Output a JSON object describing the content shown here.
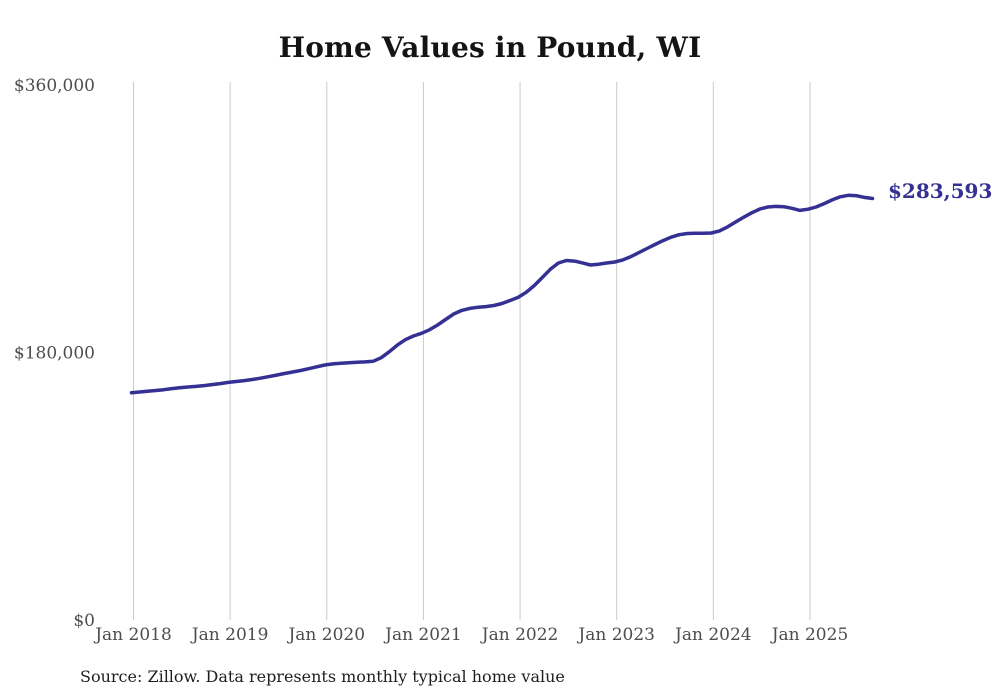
{
  "header": {
    "title": "Home Values in Pound, WI"
  },
  "chart_data": {
    "type": "line",
    "title": "Home Values in Pound, WI",
    "frequency": "monthly",
    "x_range": {
      "start": "Jan 2018",
      "end": "Sep 2025"
    },
    "ylim": [
      0,
      360000
    ],
    "grid": "vertical-only",
    "legend": "none",
    "end_label": "$283,593",
    "last_value": 283593,
    "x_tick_labels": [
      "Jan 2018",
      "Jan 2019",
      "Jan 2020",
      "Jan 2021",
      "Jan 2022",
      "Jan 2023",
      "Jan 2024",
      "Jan 2025"
    ],
    "y_ticks": [
      {
        "value": 0,
        "label": "$0"
      },
      {
        "value": 180000,
        "label": "$180,000"
      },
      {
        "value": 360000,
        "label": "$360,000"
      }
    ],
    "series": [
      {
        "name": "Typical home value",
        "color": "#353093",
        "values_by_year": {
          "2018": [
            152900,
            153400,
            153900,
            154400,
            155000,
            155700,
            156300,
            156800,
            157200,
            157700,
            158400,
            159100
          ],
          "2019": [
            159900,
            160500,
            161100,
            161800,
            162700,
            163700,
            164800,
            165900,
            166900,
            167900,
            169100,
            170400
          ],
          "2020": [
            171600,
            172300,
            172800,
            173100,
            173400,
            173700,
            174100,
            176500,
            180500,
            185000,
            188600,
            191100
          ],
          "2021": [
            192900,
            195300,
            198500,
            202200,
            205900,
            208300,
            209700,
            210400,
            210900,
            211600,
            213000,
            215000
          ],
          "2022": [
            217100,
            220500,
            225000,
            230500,
            236000,
            240200,
            241900,
            241500,
            240300,
            238900,
            239400,
            240200
          ],
          "2023": [
            240900,
            242300,
            244500,
            247200,
            250000,
            252700,
            255300,
            257600,
            259300,
            260100,
            260300,
            260300
          ],
          "2024": [
            260400,
            261800,
            264500,
            267800,
            271000,
            274000,
            276500,
            277900,
            278300,
            278100,
            277000,
            275600
          ],
          "2025": [
            276400,
            277900,
            280200,
            282700,
            284800,
            285800,
            285500,
            284400,
            283593
          ]
        }
      }
    ],
    "colors": {
      "line": "#353093",
      "grid": "#cbcbcb",
      "tick_text": "#4d4d4d",
      "title_text": "#141414",
      "end_label_text": "#353093",
      "background": "#ffffff"
    }
  },
  "footer": {
    "source": "Source: Zillow. Data represents monthly typical home value"
  }
}
